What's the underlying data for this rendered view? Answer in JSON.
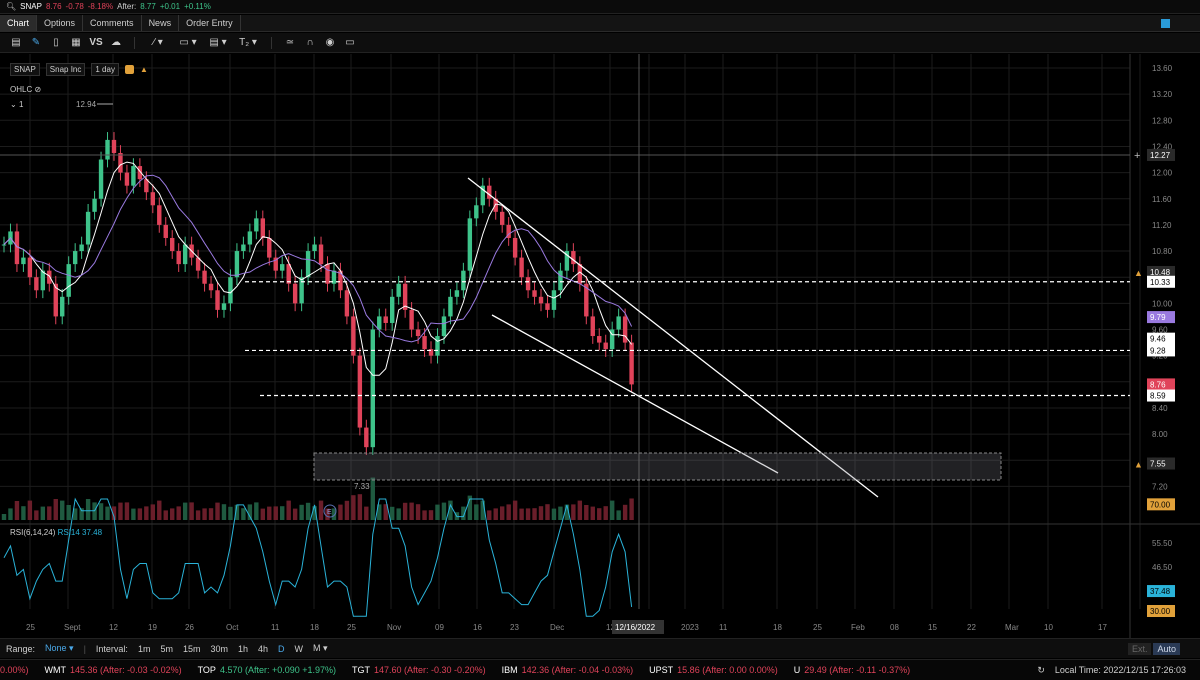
{
  "quote_bar": {
    "symbol": "SNAP",
    "last": "8.76",
    "change": "-0.78",
    "change_pct": "-8.18%",
    "after_label": "After:",
    "after_price": "8.77",
    "after_change": "+0.01",
    "after_pct": "+0.11%"
  },
  "tabs": [
    "Chart",
    "Options",
    "Comments",
    "News",
    "Order Entry"
  ],
  "chart_header": {
    "symbol": "SNAP",
    "name": "Snap Inc",
    "period": "1 day",
    "study": "OHLC",
    "expand": "1"
  },
  "price_axis": {
    "ticks": [
      "13.60",
      "13.20",
      "12.80",
      "12.40",
      "12.00",
      "11.60",
      "11.20",
      "10.80",
      "10.40",
      "10.00",
      "9.60",
      "9.20",
      "8.80",
      "8.40",
      "8.00",
      "7.60",
      "7.20"
    ]
  },
  "price_tags": {
    "cursor": "12.27",
    "alert_1": "10.48",
    "level_1": "10.33",
    "ma_1": "9.79",
    "ma_2": "9.46",
    "level_2": "9.28",
    "last": "8.76",
    "level_3": "8.59",
    "zone": "7.55"
  },
  "annotations": {
    "high": "12.94",
    "low": "7.33"
  },
  "rsi": {
    "label": "RSI(6,14,24)",
    "value_label": "RSI14 37.48",
    "ticks": [
      "55.50",
      "46.50",
      "38.00"
    ],
    "tag_70": "70.00",
    "tag_30": "30.00",
    "tag_value": "37.48"
  },
  "date_axis": [
    "25",
    "Sept",
    "12",
    "19",
    "26",
    "Oct",
    "11",
    "18",
    "25",
    "Nov",
    "09",
    "16",
    "23",
    "Dec",
    "12",
    "26",
    "2023",
    "11",
    "18",
    "25",
    "Feb",
    "08",
    "15",
    "22",
    "Mar",
    "10",
    "17"
  ],
  "date_cursor": "12/16/2022",
  "bottom_bar": {
    "range_label": "Range:",
    "range_value": "None",
    "interval_label": "Interval:",
    "intervals": [
      "1m",
      "5m",
      "15m",
      "30m",
      "1h",
      "4h",
      "D",
      "W",
      "M"
    ],
    "active_interval": "D",
    "ext": "Ext.",
    "auto": "Auto"
  },
  "ticker": [
    {
      "sym": "",
      "text": "0.00%)"
    },
    {
      "sym": "WMT",
      "text": "145.36 (After: -0.03 -0.02%)"
    },
    {
      "sym": "TOP",
      "text": "4.570 (After: +0.090 +1.97%)"
    },
    {
      "sym": "TGT",
      "text": "147.60 (After: -0.30 -0.20%)"
    },
    {
      "sym": "IBM",
      "text": "142.36 (After: -0.04 -0.03%)"
    },
    {
      "sym": "UPST",
      "text": "15.86 (After: 0.00 0.00%)"
    },
    {
      "sym": "U",
      "text": "29.49 (After: -0.11 -0.37%)"
    }
  ],
  "clock": "Local Time: 2022/12/15 17:26:03",
  "colors": {
    "up": "#3ec38a",
    "down": "#e0435a",
    "ma_fast": "#ffffff",
    "ma_slow": "#9a7ae0",
    "rsi": "#2ab3d9"
  },
  "chart_data": {
    "type": "candlestick",
    "series": [
      {
        "name": "SNAP",
        "values": []
      }
    ]
  }
}
